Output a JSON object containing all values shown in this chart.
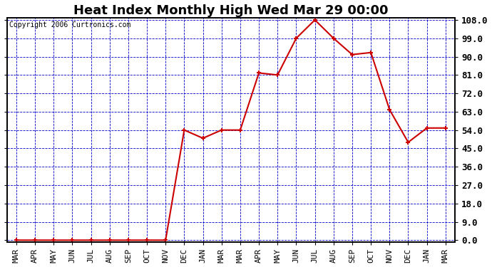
{
  "title": "Heat Index Monthly High Wed Mar 29 00:00",
  "copyright": "Copyright 2006 Curtronics.com",
  "x_labels": [
    "MAR",
    "APR",
    "MAY",
    "JUN",
    "JUL",
    "AUG",
    "SEP",
    "OCT",
    "NOV",
    "DEC",
    "JAN",
    "MAR",
    "MAR",
    "APR",
    "MAY",
    "JUN",
    "JUL",
    "AUG",
    "SEP",
    "OCT",
    "NOV",
    "DEC",
    "JAN",
    "MAR"
  ],
  "y_values": [
    0.0,
    0.0,
    0.0,
    0.0,
    0.0,
    0.0,
    0.0,
    0.0,
    0.0,
    54.0,
    50.0,
    54.0,
    54.0,
    82.0,
    81.0,
    99.0,
    108.0,
    99.0,
    91.0,
    92.0,
    64.0,
    48.0,
    55.0,
    55.0
  ],
  "y_ticks": [
    0.0,
    9.0,
    18.0,
    27.0,
    36.0,
    45.0,
    54.0,
    63.0,
    72.0,
    81.0,
    90.0,
    99.0,
    108.0
  ],
  "y_min": 0.0,
  "y_max": 108.0,
  "line_color": "#cc0000",
  "marker_color": "#cc0000",
  "fig_bg_color": "#ffffff",
  "plot_bg_color": "#ffffff",
  "grid_color": "#0000cc",
  "title_fontsize": 13,
  "copyright_fontsize": 7,
  "tick_label_fontsize": 8,
  "y_label_fontsize": 9
}
